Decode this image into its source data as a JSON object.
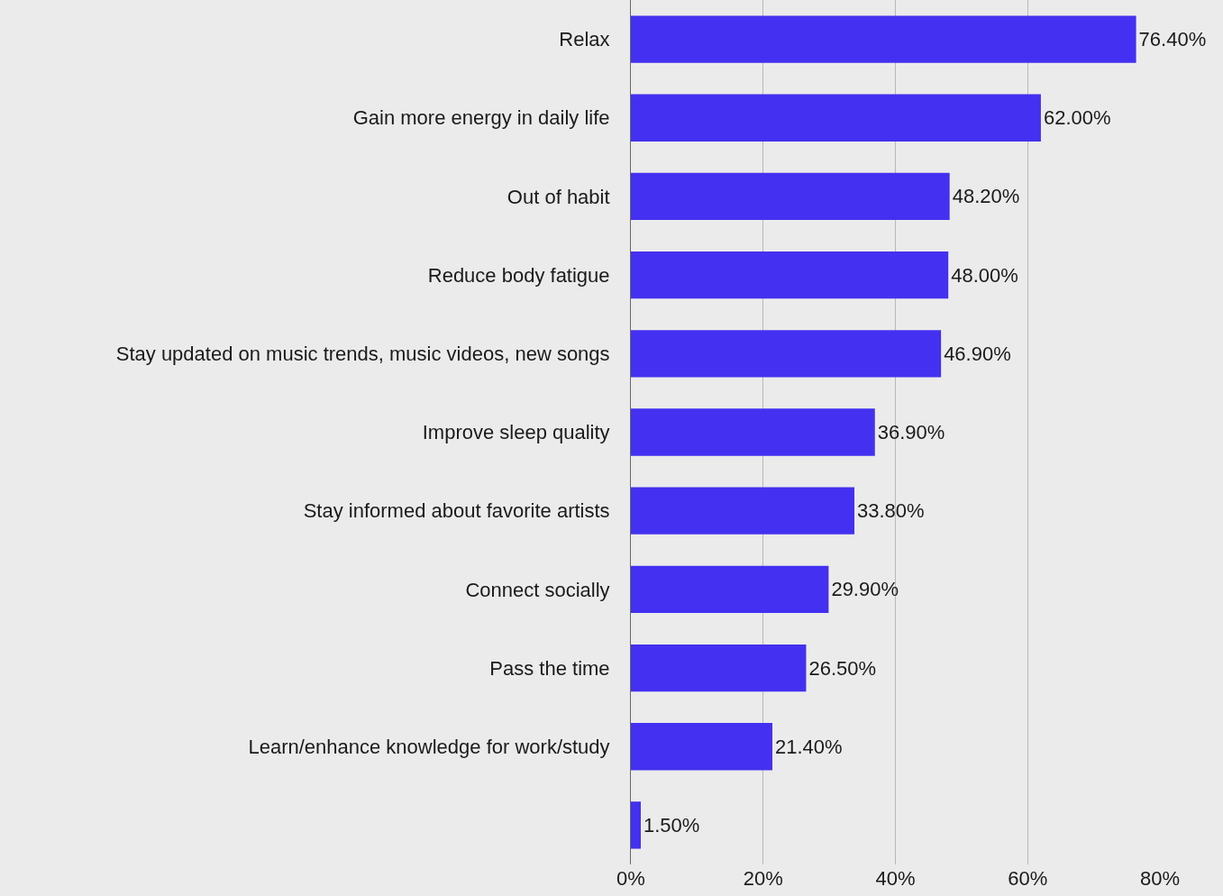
{
  "chart_data": {
    "type": "bar",
    "orientation": "horizontal",
    "categories": [
      "Relax",
      "Gain more energy in daily life",
      "Out of habit",
      "Reduce body fatigue",
      "Stay updated on music trends, music videos, new songs",
      "Improve sleep quality",
      "Stay informed about favorite artists",
      "Connect socially",
      "Pass the time",
      "Learn/enhance knowledge for work/study",
      null
    ],
    "values": [
      76.4,
      62.0,
      48.2,
      48.0,
      46.9,
      36.9,
      33.8,
      29.9,
      26.5,
      21.4,
      1.5
    ],
    "value_labels": [
      "76.40%",
      "62.00%",
      "48.20%",
      "48.00%",
      "46.90%",
      "36.90%",
      "33.80%",
      "29.90%",
      "26.50%",
      "21.40%",
      "1.50%"
    ],
    "color": "#4430f0",
    "xlim": [
      0,
      80
    ],
    "xticks": [
      {
        "value": 0,
        "label": "0%"
      },
      {
        "value": 20,
        "label": "20%"
      },
      {
        "value": 40,
        "label": "40%"
      },
      {
        "value": 60,
        "label": "60%"
      },
      {
        "value": 80,
        "label": "80%"
      }
    ],
    "grid": "x"
  }
}
